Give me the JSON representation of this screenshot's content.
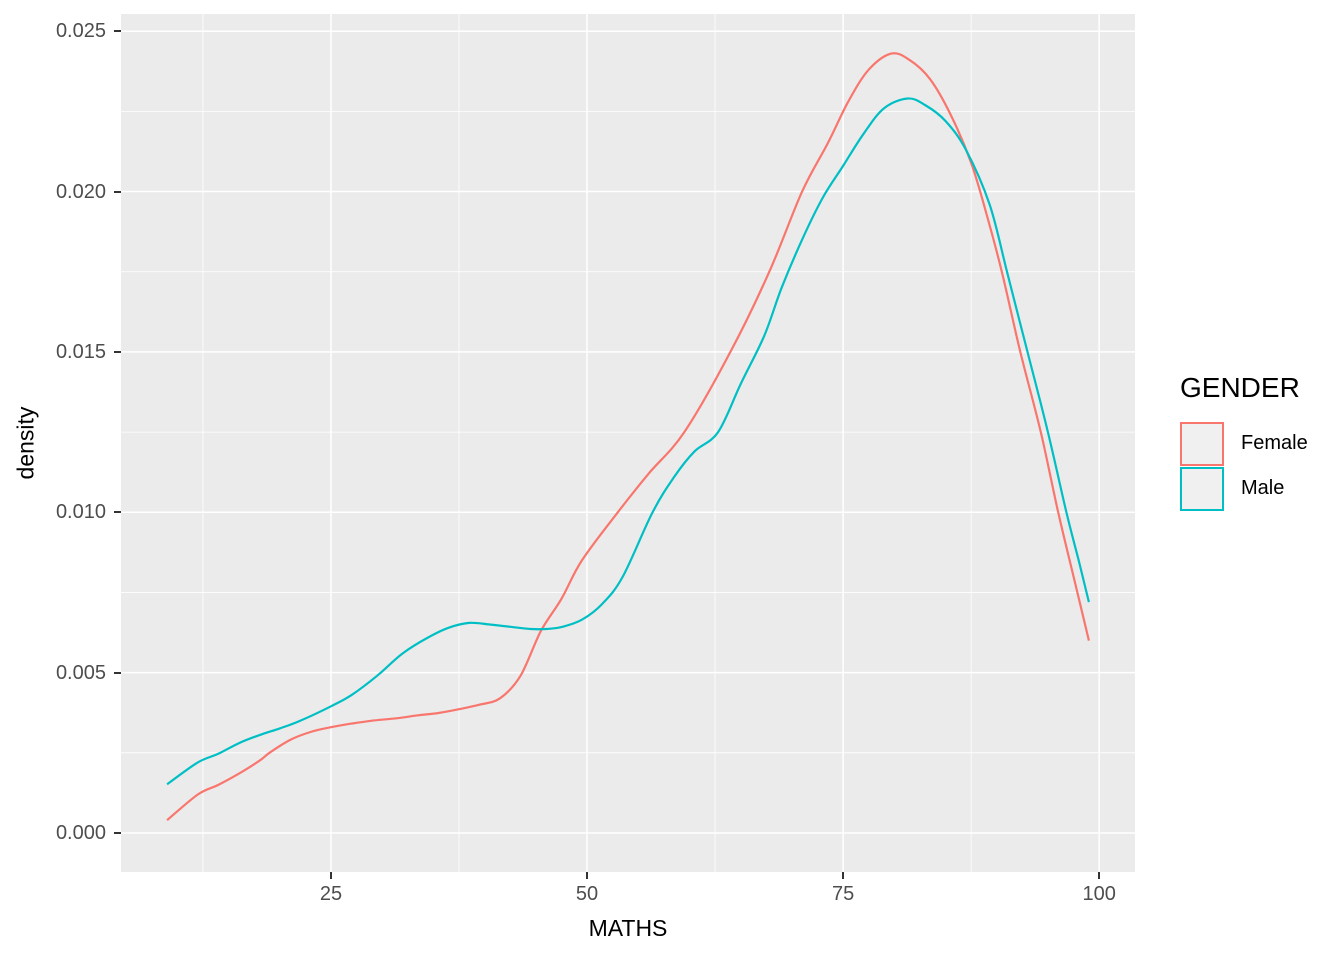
{
  "chart_data": {
    "type": "line",
    "subtype": "density",
    "title": "",
    "xlabel": "MATHS",
    "ylabel": "density",
    "grid": "on",
    "legend_position": "right",
    "colors": {
      "panel_background": "#EBEBEB",
      "gridline": "#FFFFFF",
      "tick_text": "#4D4D4D",
      "axis_title_text": "#000000",
      "tick_mark": "#333333",
      "legend_key_background": "#F0F0F0",
      "female": "#F8766D",
      "male": "#00BFC4"
    },
    "x_axis": {
      "range": [
        4.5,
        103.5
      ],
      "ticks": [
        25,
        50,
        75,
        100
      ],
      "tick_labels": [
        "25",
        "50",
        "75",
        "100"
      ],
      "minor_ticks": [
        12.5,
        37.5,
        62.5,
        87.5
      ]
    },
    "y_axis": {
      "range": [
        -0.001216,
        0.025536
      ],
      "ticks": [
        0,
        0.005,
        0.01,
        0.015,
        0.02,
        0.025
      ],
      "tick_labels": [
        "0.000",
        "0.005",
        "0.010",
        "0.015",
        "0.020",
        "0.025"
      ],
      "minor_ticks": [
        0.0025,
        0.0075,
        0.0125,
        0.0175,
        0.0225
      ]
    },
    "legend": {
      "title": "GENDER",
      "entries": [
        {
          "label": "Female",
          "color": "#F8766D"
        },
        {
          "label": "Male",
          "color": "#00BFC4"
        }
      ]
    },
    "series": [
      {
        "name": "Female",
        "color": "#F8766D",
        "points": [
          [
            9,
            0.0004
          ],
          [
            12,
            0.0012
          ],
          [
            14,
            0.0015
          ],
          [
            16,
            0.00185
          ],
          [
            18,
            0.00225
          ],
          [
            19,
            0.0025
          ],
          [
            21,
            0.0029
          ],
          [
            23,
            0.00315
          ],
          [
            25,
            0.0033
          ],
          [
            27,
            0.00341
          ],
          [
            29,
            0.0035
          ],
          [
            31.5,
            0.00358
          ],
          [
            33.5,
            0.00367
          ],
          [
            35.5,
            0.00374
          ],
          [
            37.5,
            0.00386
          ],
          [
            39.5,
            0.004
          ],
          [
            41.5,
            0.0042
          ],
          [
            43.5,
            0.0049
          ],
          [
            45.5,
            0.0063
          ],
          [
            47.5,
            0.0073
          ],
          [
            49.5,
            0.0085
          ],
          [
            53,
            0.01
          ],
          [
            56,
            0.0112
          ],
          [
            59.5,
            0.0125
          ],
          [
            64,
            0.015
          ],
          [
            67.8,
            0.0175
          ],
          [
            71,
            0.02
          ],
          [
            73.5,
            0.0215
          ],
          [
            75.5,
            0.0228
          ],
          [
            77.5,
            0.0238
          ],
          [
            79.7,
            0.0243
          ],
          [
            81.5,
            0.0241
          ],
          [
            83.5,
            0.0235
          ],
          [
            85.5,
            0.0224
          ],
          [
            87.5,
            0.0209
          ],
          [
            89,
            0.0193
          ],
          [
            90.5,
            0.0175
          ],
          [
            92.3,
            0.015
          ],
          [
            94.3,
            0.0125
          ],
          [
            96,
            0.01
          ],
          [
            97.5,
            0.008
          ],
          [
            99,
            0.006
          ]
        ]
      },
      {
        "name": "Male",
        "color": "#00BFC4",
        "points": [
          [
            9,
            0.00152
          ],
          [
            12,
            0.0022
          ],
          [
            14,
            0.00247
          ],
          [
            16,
            0.0028
          ],
          [
            18,
            0.00305
          ],
          [
            20,
            0.00326
          ],
          [
            22,
            0.0035
          ],
          [
            25,
            0.00395
          ],
          [
            27,
            0.0043
          ],
          [
            29.5,
            0.0049
          ],
          [
            32,
            0.0056
          ],
          [
            34.5,
            0.0061
          ],
          [
            36.5,
            0.0064
          ],
          [
            38.5,
            0.00655
          ],
          [
            40.5,
            0.0065
          ],
          [
            42.5,
            0.00643
          ],
          [
            44.5,
            0.00636
          ],
          [
            46,
            0.00636
          ],
          [
            47.5,
            0.00642
          ],
          [
            49.5,
            0.00665
          ],
          [
            51.5,
            0.00715
          ],
          [
            53.5,
            0.008
          ],
          [
            56.4,
            0.01
          ],
          [
            58.5,
            0.0111
          ],
          [
            60.5,
            0.0119
          ],
          [
            62.8,
            0.0125
          ],
          [
            65,
            0.014
          ],
          [
            67.3,
            0.0155
          ],
          [
            69,
            0.017
          ],
          [
            71,
            0.0185
          ],
          [
            73,
            0.0198
          ],
          [
            75,
            0.0208
          ],
          [
            77,
            0.0218
          ],
          [
            79,
            0.0226
          ],
          [
            81.3,
            0.0229
          ],
          [
            83,
            0.0227
          ],
          [
            85,
            0.0222
          ],
          [
            87,
            0.0213
          ],
          [
            89.3,
            0.0196
          ],
          [
            91,
            0.0175
          ],
          [
            93,
            0.015
          ],
          [
            95,
            0.0125
          ],
          [
            96.8,
            0.01
          ],
          [
            98,
            0.0085
          ],
          [
            99,
            0.0072
          ]
        ]
      }
    ]
  }
}
